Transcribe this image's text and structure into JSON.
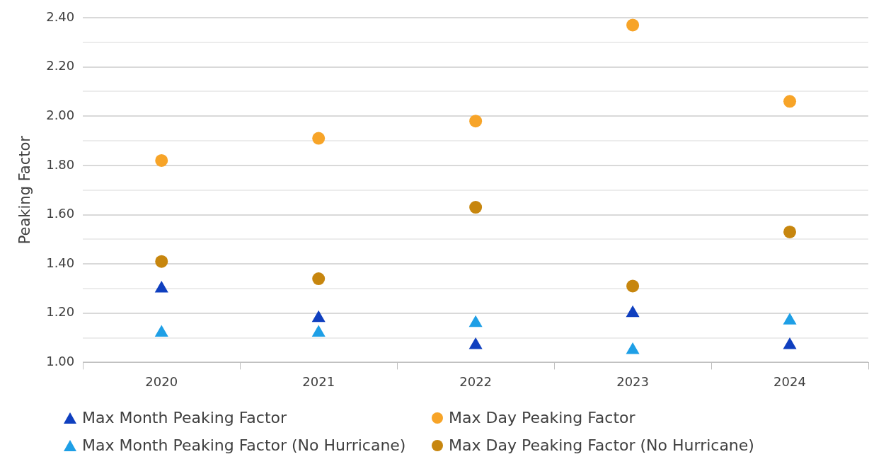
{
  "chart_data": {
    "type": "scatter",
    "ylabel": "Peaking Factor",
    "categories": [
      "2020",
      "2021",
      "2022",
      "2023",
      "2024"
    ],
    "series": [
      {
        "name": "Max Month Peaking Factor",
        "color": "#0f3fbf",
        "marker": "triangle",
        "values": [
          1.3,
          1.18,
          1.07,
          1.2,
          1.07
        ]
      },
      {
        "name": "Max Day Peaking Factor",
        "color": "#f7a428",
        "marker": "circle",
        "values": [
          1.82,
          1.91,
          1.98,
          2.37,
          2.06
        ]
      },
      {
        "name": "Max Month Peaking Factor (No Hurricane)",
        "color": "#1e9fe6",
        "marker": "triangle",
        "values": [
          1.12,
          1.12,
          1.16,
          1.05,
          1.17
        ]
      },
      {
        "name": "Max Day Peaking Factor (No Hurricane)",
        "color": "#c7860e",
        "marker": "circle",
        "values": [
          1.41,
          1.34,
          1.63,
          1.31,
          1.53
        ]
      }
    ],
    "ylim": [
      1.0,
      2.4
    ],
    "yticks": [
      {
        "value": 1.0,
        "label": "1.00"
      },
      {
        "value": 1.1,
        "label": null
      },
      {
        "value": 1.2,
        "label": "1.20"
      },
      {
        "value": 1.3,
        "label": null
      },
      {
        "value": 1.4,
        "label": "1.40"
      },
      {
        "value": 1.5,
        "label": null
      },
      {
        "value": 1.6,
        "label": "1.60"
      },
      {
        "value": 1.7,
        "label": null
      },
      {
        "value": 1.8,
        "label": "1.80"
      },
      {
        "value": 1.9,
        "label": null
      },
      {
        "value": 2.0,
        "label": "2.00"
      },
      {
        "value": 2.1,
        "label": null
      },
      {
        "value": 2.2,
        "label": "2.20"
      },
      {
        "value": 2.3,
        "label": null
      },
      {
        "value": 2.4,
        "label": "2.40"
      }
    ],
    "grid": "y",
    "legend": "bottom"
  }
}
